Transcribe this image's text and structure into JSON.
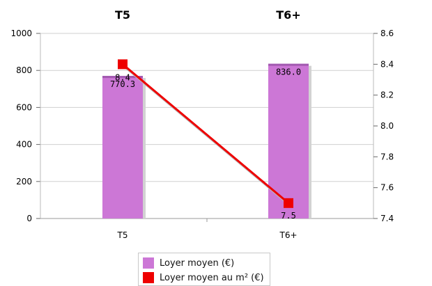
{
  "chart_data": {
    "type": "bar+line",
    "categories": [
      "T5",
      "T6+"
    ],
    "top_labels": [
      "T5",
      "T6+"
    ],
    "y_left": {
      "min": 0,
      "max": 1000,
      "ticks": [
        "0",
        "200",
        "400",
        "600",
        "800",
        "1000"
      ]
    },
    "y_right": {
      "min": 7.4,
      "max": 8.6,
      "ticks": [
        "7.4",
        "7.6",
        "7.8",
        "8.0",
        "8.2",
        "8.4",
        "8.6"
      ]
    },
    "series": [
      {
        "name": "Loyer moyen (€)",
        "kind": "bar",
        "axis": "left",
        "color": "#cc77d6",
        "values": [
          770.3,
          836.0
        ],
        "labels": [
          "770.3",
          "836.0"
        ]
      },
      {
        "name": "Loyer moyen au m² (€)",
        "kind": "line",
        "axis": "right",
        "color": "#ee0000",
        "values": [
          8.4,
          7.5
        ],
        "labels": [
          "8.4",
          "7.5"
        ]
      }
    ],
    "grid": true,
    "legend_position": "bottom-center"
  }
}
